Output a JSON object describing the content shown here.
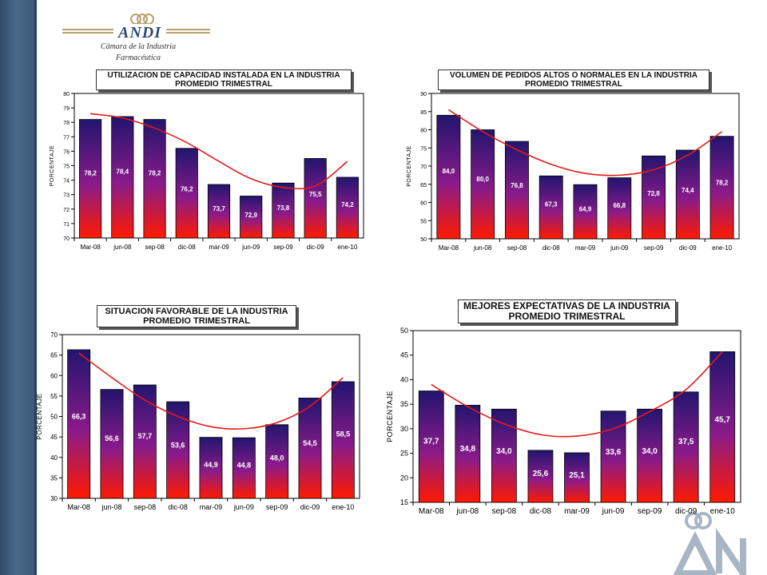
{
  "logo": {
    "name": "ANDI",
    "subtitle_line1": "Cámara de la Industria",
    "subtitle_line2": "Farmacéutica"
  },
  "colors": {
    "bar_top": "#22156e",
    "bar_bottom": "#ff1a00",
    "trend": "#e31b1b",
    "band": "#3d5c7e"
  },
  "chart_data": [
    {
      "type": "bar",
      "title_line1": "UTILIZACION DE CAPACIDAD INSTALADA EN LA INDUSTRIA",
      "title_line2": "PROMEDIO TRIMESTRAL",
      "ylabel": "PORCENTAJE",
      "categories": [
        "Mar-08",
        "jun-08",
        "sep-08",
        "dic-08",
        "mar-09",
        "jun-09",
        "sep-09",
        "dic-09",
        "ene-10"
      ],
      "values": [
        78.2,
        78.4,
        78.2,
        76.2,
        73.7,
        72.9,
        73.8,
        75.5,
        74.2
      ],
      "labels": [
        "78,2",
        "78,4",
        "78,2",
        "76,2",
        "73,7",
        "72,9",
        "73,8",
        "75,5",
        "74,2"
      ],
      "ylim": [
        70,
        80
      ],
      "yticks": [
        70,
        71,
        72,
        73,
        74,
        75,
        76,
        77,
        78,
        79,
        80
      ],
      "trend": [
        78.6,
        78.3,
        77.6,
        76.6,
        75.3,
        74.1,
        73.5,
        73.6,
        75.3
      ],
      "grid": false,
      "legend": "none"
    },
    {
      "type": "bar",
      "title_line1": "VOLUMEN DE PEDIDOS ALTOS O NORMALES EN LA INDUSTRIA",
      "title_line2": "PROMEDIO TRIMESTRAL",
      "ylabel": "PORCENTAJE",
      "categories": [
        "Mar-08",
        "jun-08",
        "sep-08",
        "dic-08",
        "mar-09",
        "jun-09",
        "sep-09",
        "dic-09",
        "ene-10"
      ],
      "values": [
        84.0,
        80.0,
        76.8,
        67.3,
        64.9,
        66.8,
        72.8,
        74.4,
        78.2
      ],
      "labels": [
        "84,0",
        "80,0",
        "76,8",
        "67,3",
        "64,9",
        "66,8",
        "72,8",
        "74,4",
        "78,2"
      ],
      "ylim": [
        50,
        90
      ],
      "yticks": [
        50,
        55,
        60,
        65,
        70,
        75,
        80,
        85,
        90
      ],
      "trend": [
        85.5,
        79.5,
        74.5,
        70.5,
        68.0,
        67.5,
        69.0,
        73.0,
        79.5
      ],
      "grid": false,
      "legend": "none"
    },
    {
      "type": "bar",
      "title_line1": "SITUACION FAVORABLE DE LA INDUSTRIA",
      "title_line2": "PROMEDIO TRIMESTRAL",
      "ylabel": "PORCENTAJE",
      "categories": [
        "Mar-08",
        "jun-08",
        "sep-08",
        "dic-08",
        "mar-09",
        "jun-09",
        "sep-09",
        "dic-09",
        "ene-10"
      ],
      "values": [
        66.3,
        56.6,
        57.7,
        53.6,
        44.9,
        44.8,
        48.0,
        54.5,
        58.5
      ],
      "labels": [
        "66,3",
        "56,6",
        "57,7",
        "53,6",
        "44,9",
        "44,8",
        "48,0",
        "54,5",
        "58,5"
      ],
      "ylim": [
        30,
        70
      ],
      "yticks": [
        30,
        35,
        40,
        45,
        50,
        55,
        60,
        65,
        70
      ],
      "trend": [
        65.5,
        59.5,
        54.0,
        50.0,
        47.5,
        47.0,
        48.5,
        52.5,
        59.5
      ],
      "grid": false,
      "legend": "none"
    },
    {
      "type": "bar",
      "title_line1": "MEJORES EXPECTATIVAS DE LA INDUSTRIA",
      "title_line2": "PROMEDIO TRIMESTRAL",
      "ylabel": "PORCENTAJE",
      "categories": [
        "Mar-08",
        "jun-08",
        "sep-08",
        "dic-08",
        "mar-09",
        "jun-09",
        "sep-09",
        "dic-09",
        "ene-10"
      ],
      "values": [
        37.7,
        34.8,
        34.0,
        25.6,
        25.1,
        33.6,
        34.0,
        37.5,
        45.7
      ],
      "labels": [
        "37,7",
        "34,8",
        "34,0",
        "25,6",
        "25,1",
        "33,6",
        "34,0",
        "37,5",
        "45,7"
      ],
      "ylim": [
        15,
        50
      ],
      "yticks": [
        15,
        20,
        25,
        30,
        35,
        40,
        45,
        50
      ],
      "trend": [
        39.0,
        34.5,
        31.0,
        28.8,
        28.5,
        30.0,
        33.5,
        38.0,
        45.7
      ],
      "grid": false,
      "legend": "none"
    }
  ]
}
